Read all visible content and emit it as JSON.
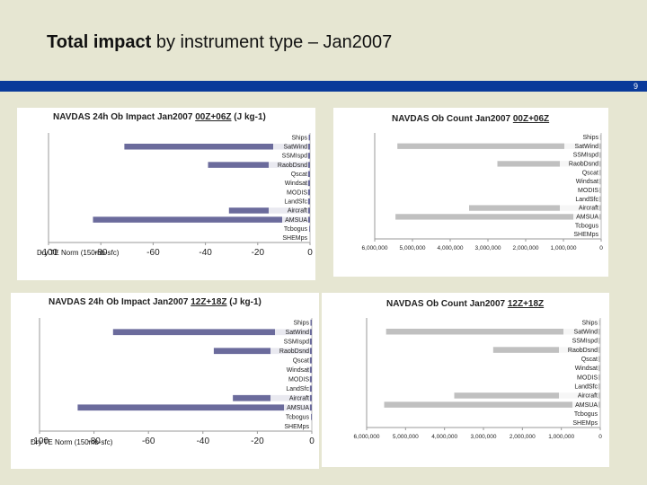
{
  "slide": {
    "title_bold": "Total impact",
    "title_rest": " by instrument type – Jan2007",
    "page_number": "9"
  },
  "chart_data": [
    {
      "type": "bar",
      "title": "NAVDAS 24h Ob Impact Jan2007",
      "title_suffix": "00Z+06Z",
      "units": "(J kg-1)",
      "annotation": "Dry TE Norm (150mb-sfc)",
      "categories": [
        "Ships",
        "SatWind",
        "SSMIspd",
        "RaobDsnd",
        "Qscat",
        "Windsat",
        "MODIS",
        "LandSfc",
        "Aircraft",
        "AMSUA",
        "Tcbogus",
        "SHEMps"
      ],
      "values": [
        -0.5,
        -71,
        -1,
        -39,
        -1,
        -2,
        -1,
        -1,
        -31,
        -83,
        -0.3,
        0
      ],
      "xlim": [
        -100,
        0
      ],
      "xticks": [
        "-100",
        "-80",
        "-60",
        "-40",
        "-20",
        "0"
      ],
      "color": "#6b6b9c"
    },
    {
      "type": "bar",
      "title": "NAVDAS Ob Count Jan2007",
      "title_suffix": "00Z+06Z",
      "categories": [
        "Ships",
        "SatWind",
        "SSMIspd",
        "RaobDsnd",
        "Qscat",
        "Windsat",
        "MODIS",
        "LandSfc",
        "Aircraft",
        "AMSUA",
        "Tcbogus",
        "SHEMps"
      ],
      "values": [
        30000,
        5400000,
        50000,
        2750000,
        50000,
        100000,
        50000,
        300000,
        3500000,
        5450000,
        0,
        0
      ],
      "xlim": [
        6000000,
        0
      ],
      "xticks": [
        "6,000,000",
        "5,000,000",
        "4,000,000",
        "3,000,000",
        "2,000,000",
        "1,000,000",
        "0"
      ],
      "color": "#c0c0c0"
    },
    {
      "type": "bar",
      "title": "NAVDAS 24h Ob Impact Jan2007",
      "title_suffix": "12Z+18Z",
      "units": "(J kg-1)",
      "annotation": "Dry TE Norm (150mb-sfc)",
      "categories": [
        "Ships",
        "SatWind",
        "SSMIspd",
        "RaobDsnd",
        "Qscat",
        "Windsat",
        "MODIS",
        "LandSfc",
        "Aircraft",
        "AMSUA",
        "Tcbogus",
        "SHEMps"
      ],
      "values": [
        -0.5,
        -73,
        -1,
        -36,
        -1,
        -2,
        -1,
        -1,
        -29,
        -86,
        -0.3,
        0
      ],
      "xlim": [
        -100,
        0
      ],
      "xticks": [
        "-100",
        "-80",
        "-60",
        "-40",
        "-20",
        "0"
      ],
      "color": "#6b6b9c"
    },
    {
      "type": "bar",
      "title": "NAVDAS Ob Count Jan2007",
      "title_suffix": "12Z+18Z",
      "categories": [
        "Ships",
        "SatWind",
        "SSMIspd",
        "RaobDsnd",
        "Qscat",
        "Windsat",
        "MODIS",
        "LandSfc",
        "Aircraft",
        "AMSUA",
        "Tcbogus",
        "SHEMps"
      ],
      "values": [
        30000,
        5500000,
        50000,
        2750000,
        50000,
        100000,
        50000,
        450000,
        3750000,
        5550000,
        0,
        0
      ],
      "xlim": [
        6000000,
        0
      ],
      "xticks": [
        "6,000,000",
        "5,000,000",
        "4,000,000",
        "3,000,000",
        "2,000,000",
        "1,000,000",
        "0"
      ],
      "color": "#c0c0c0"
    }
  ]
}
